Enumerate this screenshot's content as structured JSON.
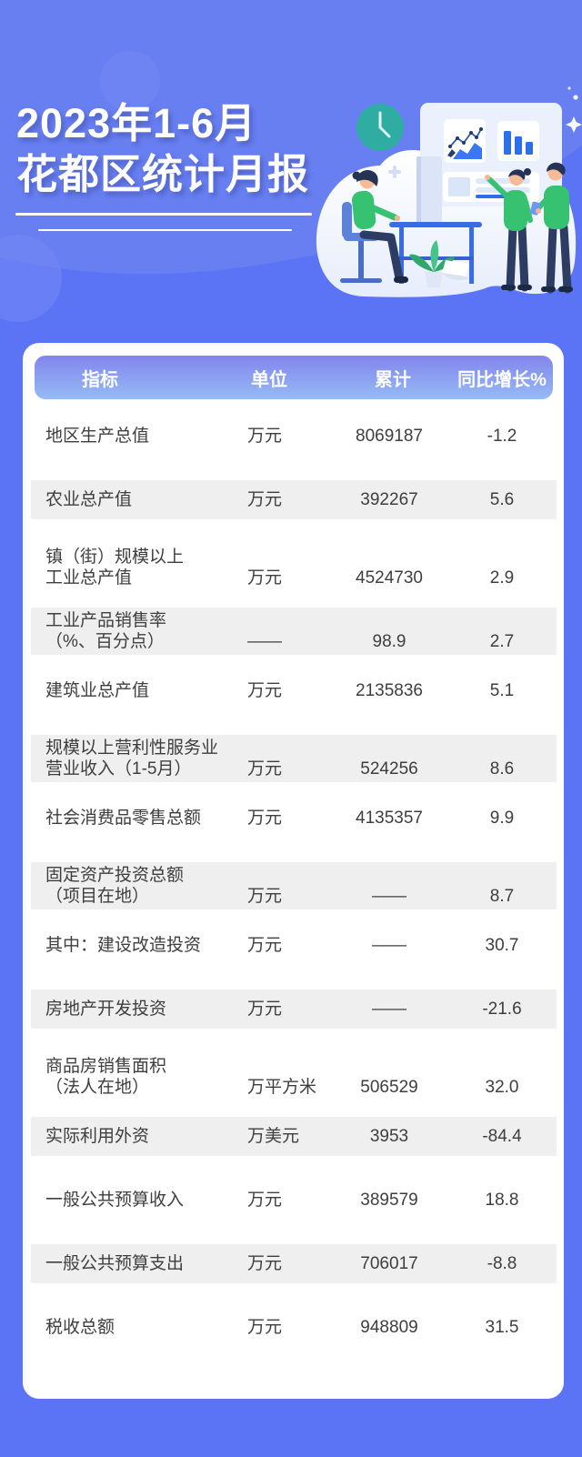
{
  "page": {
    "title_line1": "2023年1-6月",
    "title_line2": "花都区统计月报"
  },
  "table": {
    "columns": [
      "指标",
      "单位",
      "累计",
      "同比增长%"
    ],
    "rows": [
      {
        "indicator": [
          "地区生产总值"
        ],
        "unit": "万元",
        "cumulative": "8069187",
        "yoy": "-1.2",
        "striped": false
      },
      {
        "indicator": [
          "农业总产值"
        ],
        "unit": "万元",
        "cumulative": "392267",
        "yoy": "5.6",
        "striped": true
      },
      {
        "indicator": [
          "镇（街）规模以上",
          "工业总产值"
        ],
        "unit": "万元",
        "cumulative": "4524730",
        "yoy": "2.9",
        "striped": false
      },
      {
        "indicator": [
          "工业产品销售率",
          "（%、百分点）"
        ],
        "unit": "——",
        "cumulative": "98.9",
        "yoy": "2.7",
        "striped": true
      },
      {
        "indicator": [
          "建筑业总产值"
        ],
        "unit": "万元",
        "cumulative": "2135836",
        "yoy": "5.1",
        "striped": false
      },
      {
        "indicator": [
          "规模以上营利性服务业",
          "营业收入（1-5月）"
        ],
        "unit": "万元",
        "cumulative": "524256",
        "yoy": "8.6",
        "striped": true
      },
      {
        "indicator": [
          "社会消费品零售总额"
        ],
        "unit": "万元",
        "cumulative": "4135357",
        "yoy": "9.9",
        "striped": false
      },
      {
        "indicator": [
          "固定资产投资总额",
          "（项目在地）"
        ],
        "unit": "万元",
        "cumulative": "——",
        "yoy": "8.7",
        "striped": true
      },
      {
        "indicator": [
          "其中：建设改造投资"
        ],
        "unit": "万元",
        "cumulative": "——",
        "yoy": "30.7",
        "striped": false
      },
      {
        "indicator": [
          "房地产开发投资"
        ],
        "unit": "万元",
        "cumulative": "——",
        "yoy": "-21.6",
        "striped": true
      },
      {
        "indicator": [
          "商品房销售面积",
          "（法人在地）"
        ],
        "unit": "万平方米",
        "cumulative": "506529",
        "yoy": "32.0",
        "striped": false
      },
      {
        "indicator": [
          "实际利用外资"
        ],
        "unit": "万美元",
        "cumulative": "3953",
        "yoy": "-84.4",
        "striped": true
      },
      {
        "indicator": [
          "一般公共预算收入"
        ],
        "unit": "万元",
        "cumulative": "389579",
        "yoy": "18.8",
        "striped": false
      },
      {
        "indicator": [
          "一般公共预算支出"
        ],
        "unit": "万元",
        "cumulative": "706017",
        "yoy": "-8.8",
        "striped": true
      },
      {
        "indicator": [
          "税收总额"
        ],
        "unit": "万元",
        "cumulative": "948809",
        "yoy": "31.5",
        "striped": false
      }
    ]
  },
  "colors": {
    "page_bg": "#5b73f5",
    "bg_blob": "#687ff2",
    "header_gradient_top": "#8285ec",
    "header_gradient_bottom": "#95bbf5",
    "stripe_gray": "#efefef",
    "row_text": "#3e3e3e",
    "accent_blue": "#2e6fe8",
    "teal_clock": "#30ada2",
    "shirt_green": "#37c271",
    "card_white": "#ffffff"
  },
  "illustration": {
    "icons": [
      "clock-icon",
      "line-chart-icon",
      "bar-chart-icon",
      "report-panel",
      "plus-icon",
      "sparkle-icon",
      "whiteboard",
      "monitor",
      "desk",
      "office-chair",
      "seated-person",
      "pointing-person",
      "phone-person",
      "plant",
      "paper-sheet"
    ]
  }
}
